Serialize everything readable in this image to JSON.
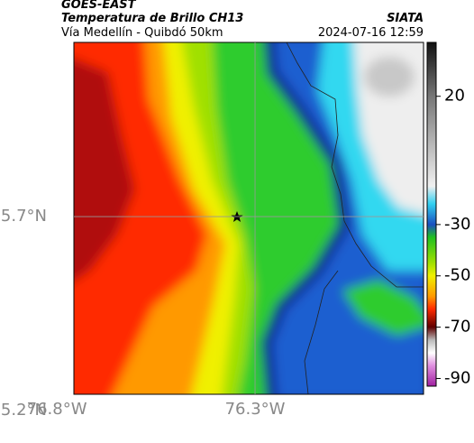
{
  "header": {
    "title": "GOES-EAST",
    "subtitle": "Temperatura de Brillo CH13",
    "agency": "SIATA",
    "route": "Vía Medellín - Quibdó 50km",
    "timestamp": "2024-07-16 12:59"
  },
  "map": {
    "xlim": [
      -76.757,
      -75.875
    ],
    "ylim": [
      5.242,
      6.149
    ],
    "xticks": [
      {
        "value": -76.8,
        "label": "76.8°W"
      },
      {
        "value": -76.3,
        "label": "76.3°W"
      }
    ],
    "yticks": [
      {
        "value": 5.7,
        "label": "5.7°N"
      },
      {
        "value": 5.2,
        "label": "5.2°N"
      }
    ],
    "grid": true
  },
  "colorbar": {
    "lim": [
      -93,
      41
    ],
    "ticks": [
      20,
      -30,
      -50,
      -70,
      -90
    ]
  }
}
